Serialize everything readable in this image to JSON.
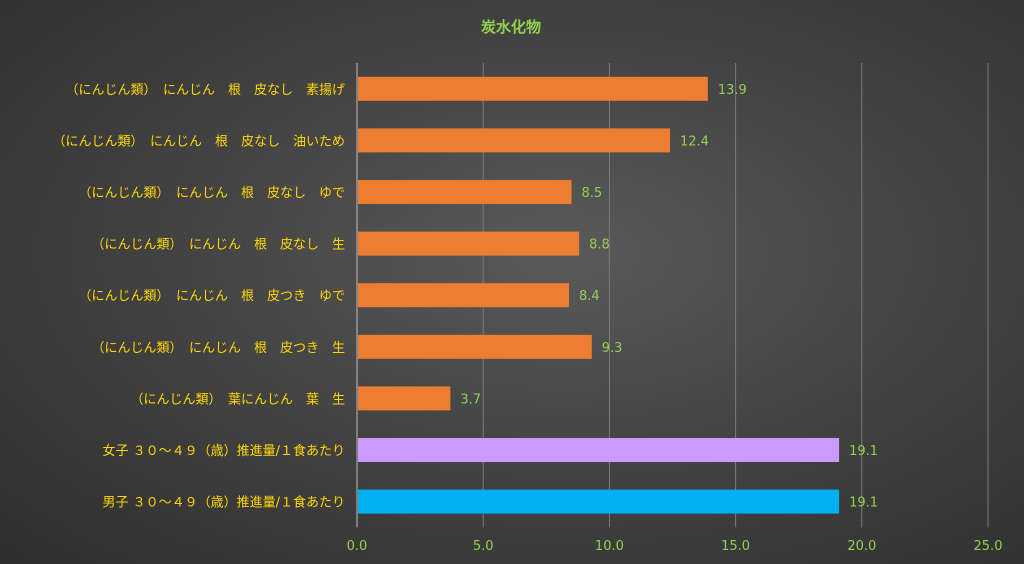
{
  "chart_data": {
    "type": "bar",
    "orientation": "horizontal",
    "title": "炭水化物",
    "xlabel": "",
    "ylabel": "",
    "xlim": [
      0,
      25
    ],
    "x_ticks": [
      "0.0",
      "5.0",
      "10.0",
      "15.0",
      "20.0",
      "25.0"
    ],
    "grid": true,
    "legend": "none",
    "categories": [
      "（にんじん類）　にんじん　根　皮なし　素揚げ",
      "（にんじん類）　にんじん　根　皮なし　油いため",
      "（にんじん類）　にんじん　根　皮なし　ゆで",
      "（にんじん類）　にんじん　根　皮なし　生",
      "（にんじん類）　にんじん　根　皮つき　ゆで",
      "（にんじん類）　にんじん　根　皮つき　生",
      "（にんじん類）　葉にんじん　葉　生",
      "女子 ３０～４９（歳）推進量/１食あたり",
      "男子 ３０～４９（歳）推進量/１食あたり"
    ],
    "values": [
      13.9,
      12.4,
      8.5,
      8.8,
      8.4,
      9.3,
      3.7,
      19.1,
      19.1
    ],
    "value_labels": [
      "13.9",
      "12.4",
      "8.5",
      "8.8",
      "8.4",
      "9.3",
      "3.7",
      "19.1",
      "19.1"
    ],
    "bar_colors": [
      "#ED7D31",
      "#ED7D31",
      "#ED7D31",
      "#ED7D31",
      "#ED7D31",
      "#ED7D31",
      "#ED7D31",
      "#CC99FF",
      "#00B0F0"
    ]
  },
  "colors": {
    "title": "#92D050",
    "category_labels": "#FFD700",
    "value_labels": "#92D050",
    "tick_labels": "#92D050",
    "gridlines": "#7a7a7a"
  }
}
